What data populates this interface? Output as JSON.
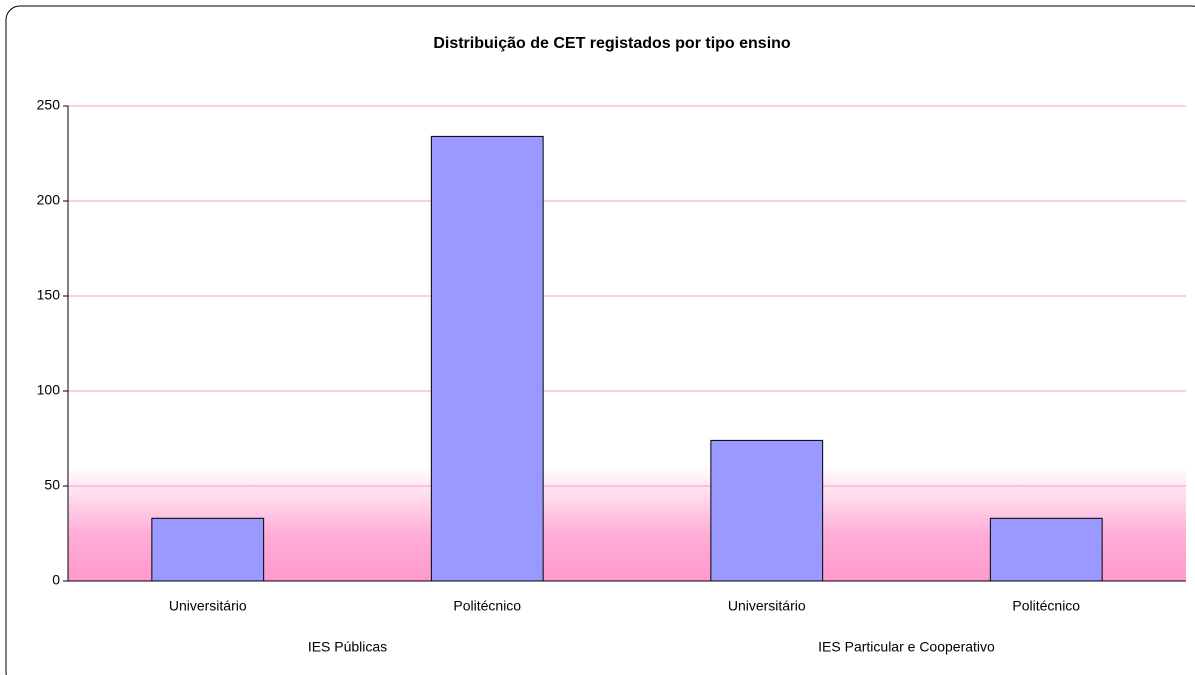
{
  "chart_data": {
    "type": "bar",
    "title": "Distribuição de CET registados por tipo ensino",
    "groups": [
      {
        "label": "IES Públicas",
        "categories": [
          "Universitário",
          "Politécnico"
        ],
        "values": [
          33,
          234
        ]
      },
      {
        "label": "IES Particular e Cooperativo",
        "categories": [
          "Universitário",
          "Politécnico"
        ],
        "values": [
          74,
          33
        ]
      }
    ],
    "color": "#9999ff",
    "ylim": [
      0,
      250
    ],
    "yticks": [
      0,
      50,
      100,
      150,
      200,
      250
    ],
    "grid": true
  }
}
